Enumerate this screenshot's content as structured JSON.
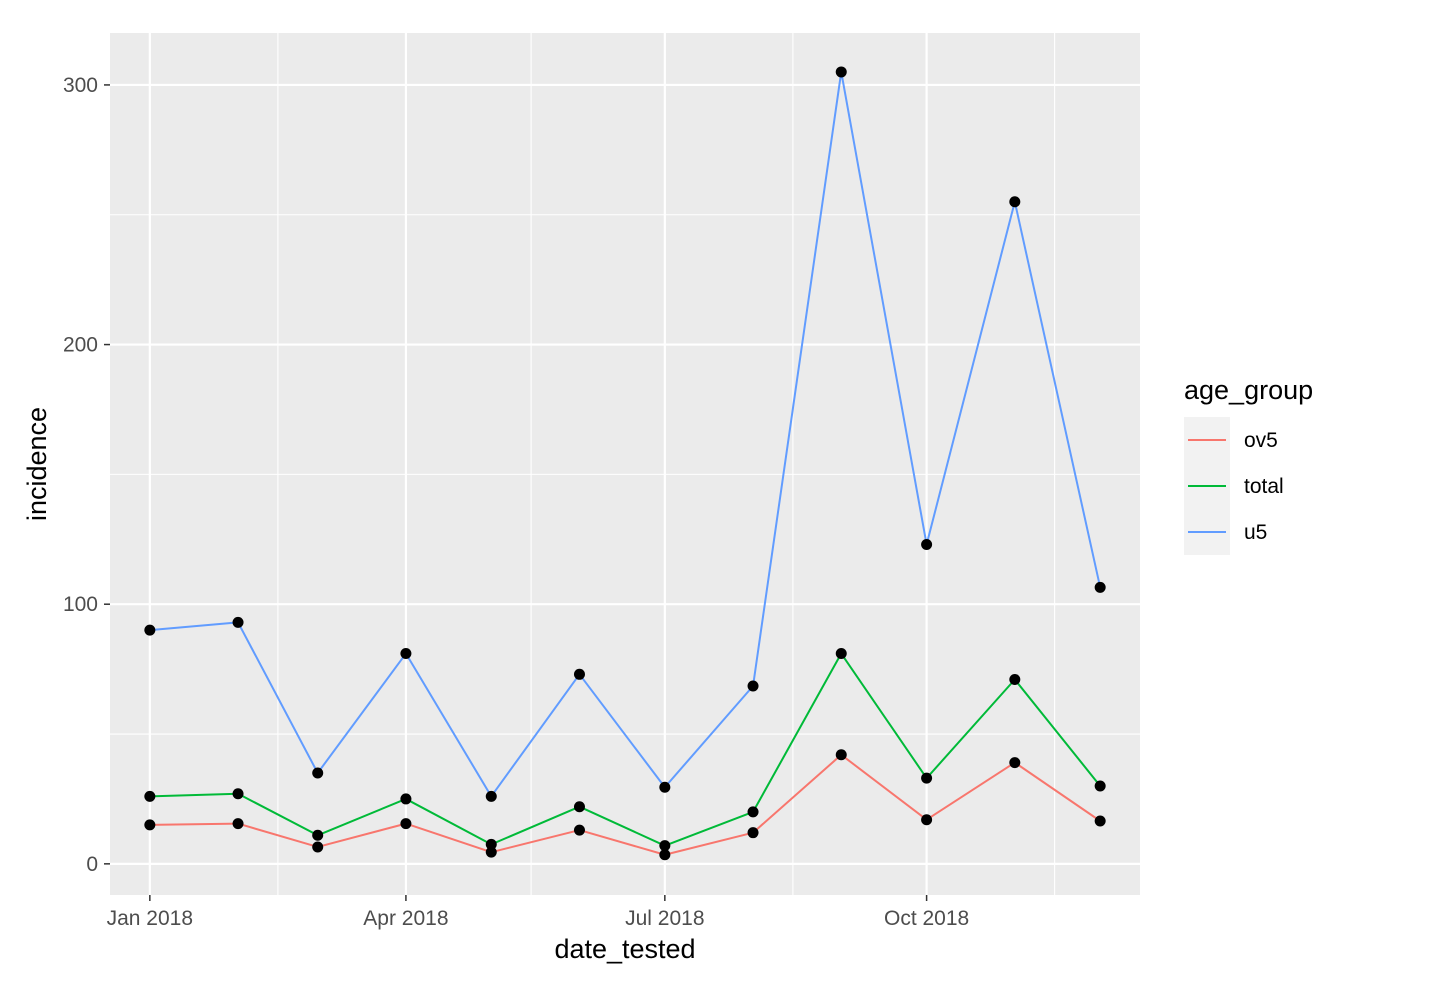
{
  "chart_data": {
    "type": "line",
    "xlabel": "date_tested",
    "ylabel": "incidence",
    "x": [
      "2018-01-01",
      "2018-02-01",
      "2018-03-01",
      "2018-04-01",
      "2018-05-01",
      "2018-06-01",
      "2018-07-01",
      "2018-08-01",
      "2018-09-01",
      "2018-10-01",
      "2018-11-01",
      "2018-12-01"
    ],
    "xlim": [
      "2017-12-18",
      "2018-12-15"
    ],
    "x_ticks": [
      {
        "date": "2018-01-01",
        "label": "Jan 2018"
      },
      {
        "date": "2018-04-01",
        "label": "Apr 2018"
      },
      {
        "date": "2018-07-01",
        "label": "Jul 2018"
      },
      {
        "date": "2018-10-01",
        "label": "Oct 2018"
      }
    ],
    "x_minor_ticks": [
      "2018-02-15",
      "2018-05-15",
      "2018-08-15",
      "2018-11-15"
    ],
    "ylim": [
      -12,
      320
    ],
    "y_ticks": [
      0,
      100,
      200,
      300
    ],
    "y_minor_ticks": [
      50,
      150,
      250
    ],
    "grid": true,
    "legend": {
      "title": "age_group",
      "position": "right"
    },
    "series": [
      {
        "name": "ov5",
        "color": "#F8766D",
        "values": [
          15,
          15.5,
          6.5,
          15.5,
          4.5,
          13,
          3.5,
          12,
          42,
          17,
          39,
          16.5
        ]
      },
      {
        "name": "total",
        "color": "#00BA38",
        "values": [
          26,
          27,
          11,
          25,
          7.5,
          22,
          7,
          20,
          81,
          33,
          71,
          30
        ]
      },
      {
        "name": "u5",
        "color": "#619CFF",
        "values": [
          90,
          93,
          35,
          81,
          26,
          73,
          29.5,
          68.5,
          305,
          123,
          255,
          106.5
        ]
      }
    ]
  }
}
